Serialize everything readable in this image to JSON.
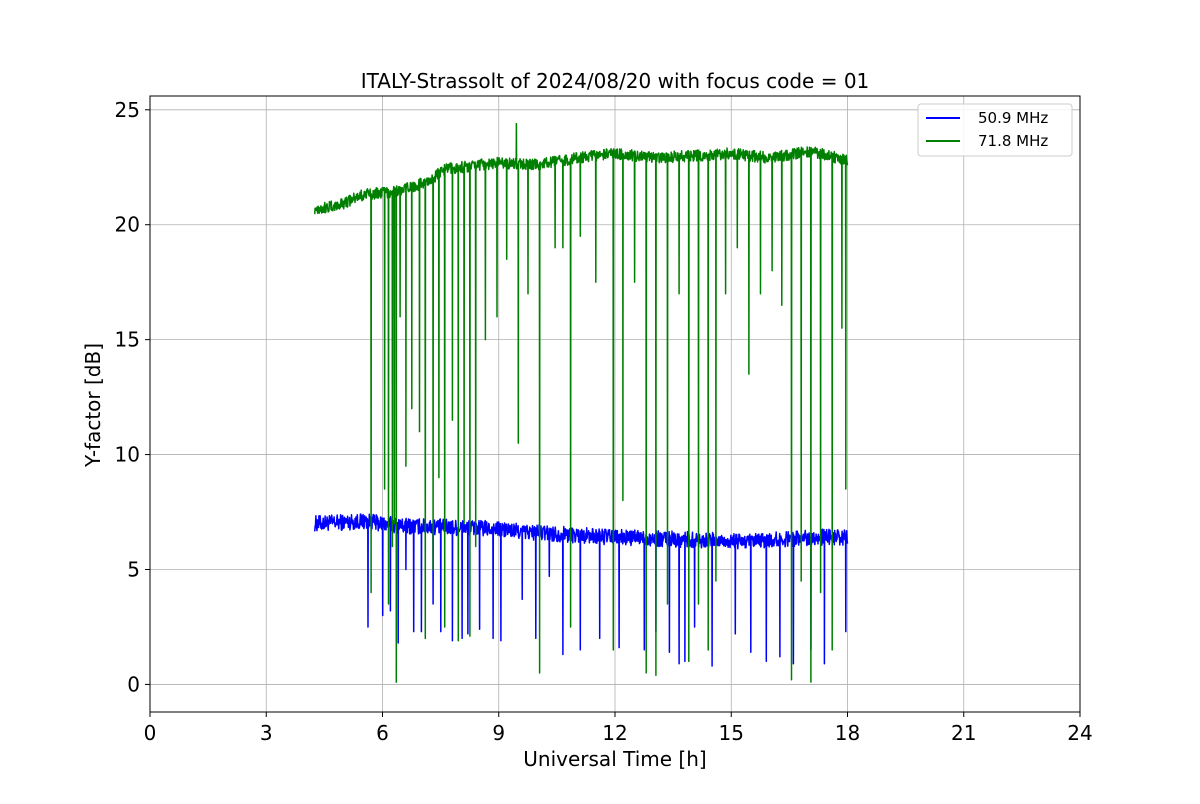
{
  "chart_data": {
    "type": "line",
    "title": "ITALY-Strassolt of 2024/08/20 with focus code = 01",
    "xlabel": "Universal Time [h]",
    "ylabel": "Y-factor [dB]",
    "xlim": [
      0,
      24
    ],
    "ylim": [
      -1.2,
      25.6
    ],
    "xticks": [
      0,
      3,
      6,
      9,
      12,
      15,
      18,
      21,
      24
    ],
    "yticks": [
      0,
      5,
      10,
      15,
      20,
      25
    ],
    "grid": true,
    "legend_position": "top-right",
    "series": [
      {
        "name": "50.9 MHz",
        "color": "#0000ff",
        "baseline": [
          [
            4.25,
            7.0
          ],
          [
            5.5,
            7.1
          ],
          [
            6.5,
            6.9
          ],
          [
            8.5,
            6.8
          ],
          [
            10.0,
            6.6
          ],
          [
            12.0,
            6.4
          ],
          [
            14.0,
            6.3
          ],
          [
            15.5,
            6.2
          ],
          [
            17.0,
            6.4
          ],
          [
            18.0,
            6.4
          ]
        ],
        "noise_band": 0.7,
        "dips": [
          [
            5.62,
            2.5
          ],
          [
            6.0,
            3.0
          ],
          [
            6.2,
            3.2
          ],
          [
            6.4,
            1.8
          ],
          [
            6.6,
            5.0
          ],
          [
            6.8,
            2.3
          ],
          [
            7.0,
            2.3
          ],
          [
            7.3,
            3.5
          ],
          [
            7.5,
            2.3
          ],
          [
            7.8,
            1.9
          ],
          [
            8.05,
            2.0
          ],
          [
            8.2,
            2.2
          ],
          [
            8.5,
            2.4
          ],
          [
            8.85,
            2.0
          ],
          [
            9.05,
            1.9
          ],
          [
            9.6,
            3.7
          ],
          [
            9.95,
            2.0
          ],
          [
            10.3,
            4.7
          ],
          [
            10.65,
            1.3
          ],
          [
            11.1,
            1.5
          ],
          [
            11.6,
            2.0
          ],
          [
            12.1,
            1.6
          ],
          [
            12.75,
            1.5
          ],
          [
            13.05,
            2.3
          ],
          [
            13.4,
            1.4
          ],
          [
            13.65,
            0.9
          ],
          [
            13.8,
            1.0
          ],
          [
            14.05,
            2.5
          ],
          [
            14.5,
            0.8
          ],
          [
            15.1,
            2.2
          ],
          [
            15.5,
            1.4
          ],
          [
            15.9,
            1.0
          ],
          [
            16.25,
            1.2
          ],
          [
            16.6,
            0.9
          ],
          [
            17.05,
            1.5
          ],
          [
            17.4,
            0.9
          ],
          [
            17.95,
            2.3
          ]
        ]
      },
      {
        "name": "71.8 MHz",
        "color": "#008000",
        "baseline": [
          [
            4.25,
            20.7
          ],
          [
            4.8,
            20.8
          ],
          [
            5.5,
            21.3
          ],
          [
            6.5,
            21.5
          ],
          [
            7.2,
            21.9
          ],
          [
            7.6,
            22.4
          ],
          [
            8.0,
            22.5
          ],
          [
            9.0,
            22.7
          ],
          [
            10.0,
            22.6
          ],
          [
            11.0,
            22.9
          ],
          [
            12.0,
            23.1
          ],
          [
            13.0,
            22.9
          ],
          [
            14.0,
            23.0
          ],
          [
            15.0,
            23.1
          ],
          [
            16.0,
            22.9
          ],
          [
            17.0,
            23.2
          ],
          [
            18.0,
            22.8
          ]
        ],
        "noise_band": 0.5,
        "spikes": [
          [
            9.45,
            24.4
          ]
        ],
        "dips": [
          [
            5.7,
            4.0
          ],
          [
            6.05,
            8.5
          ],
          [
            6.15,
            3.5
          ],
          [
            6.25,
            6.0
          ],
          [
            6.3,
            7.0
          ],
          [
            6.35,
            0.1
          ],
          [
            6.45,
            16.0
          ],
          [
            6.6,
            9.5
          ],
          [
            6.75,
            12.0
          ],
          [
            6.95,
            11.0
          ],
          [
            7.1,
            2.0
          ],
          [
            7.3,
            5.0
          ],
          [
            7.45,
            9.0
          ],
          [
            7.6,
            2.5
          ],
          [
            7.8,
            11.5
          ],
          [
            7.95,
            1.9
          ],
          [
            8.1,
            7.0
          ],
          [
            8.25,
            2.1
          ],
          [
            8.4,
            6.0
          ],
          [
            8.65,
            15.0
          ],
          [
            8.95,
            16.0
          ],
          [
            9.2,
            18.5
          ],
          [
            9.5,
            10.5
          ],
          [
            9.75,
            17.0
          ],
          [
            10.05,
            0.5
          ],
          [
            10.45,
            19.0
          ],
          [
            10.65,
            19.0
          ],
          [
            10.85,
            2.5
          ],
          [
            11.1,
            19.5
          ],
          [
            11.5,
            17.5
          ],
          [
            11.95,
            1.5
          ],
          [
            12.2,
            8.0
          ],
          [
            12.5,
            17.5
          ],
          [
            12.8,
            0.5
          ],
          [
            13.05,
            0.4
          ],
          [
            13.35,
            3.5
          ],
          [
            13.65,
            17.0
          ],
          [
            13.9,
            1.0
          ],
          [
            14.15,
            3.5
          ],
          [
            14.4,
            1.5
          ],
          [
            14.6,
            4.5
          ],
          [
            14.85,
            17.0
          ],
          [
            15.15,
            19.0
          ],
          [
            15.45,
            13.5
          ],
          [
            15.75,
            17.0
          ],
          [
            16.05,
            18.0
          ],
          [
            16.3,
            16.5
          ],
          [
            16.55,
            0.2
          ],
          [
            16.8,
            4.5
          ],
          [
            17.05,
            0.1
          ],
          [
            17.3,
            4.0
          ],
          [
            17.6,
            1.5
          ],
          [
            17.85,
            15.5
          ],
          [
            17.95,
            8.5
          ]
        ]
      }
    ]
  }
}
